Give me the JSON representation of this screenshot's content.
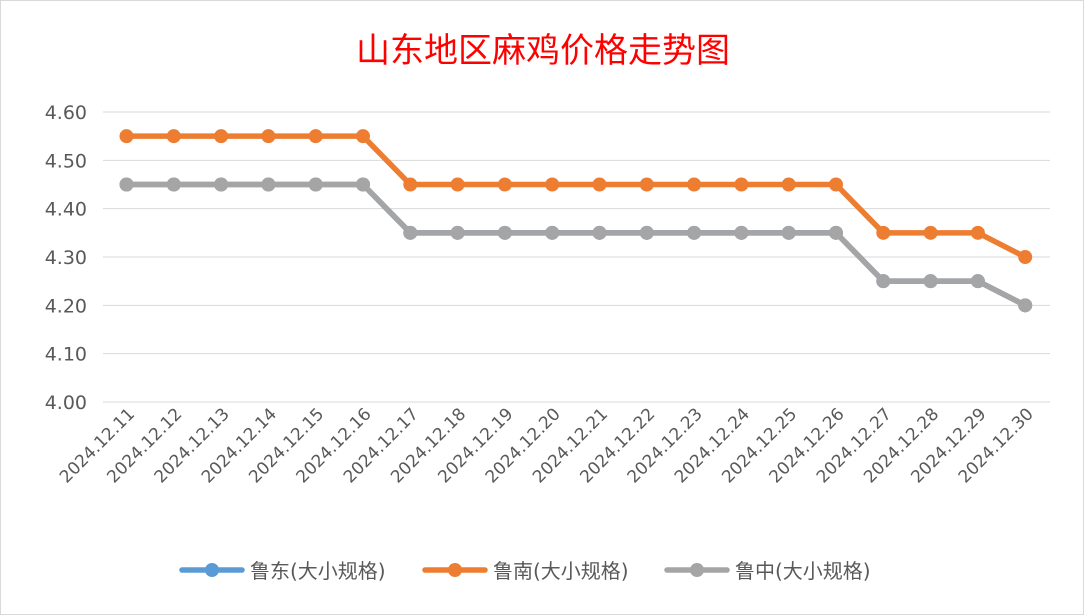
{
  "chart_data": {
    "type": "line",
    "title": "山东地区麻鸡价格走势图",
    "xlabel": "",
    "ylabel": "",
    "categories": [
      "2024.12.11",
      "2024.12.12",
      "2024.12.13",
      "2024.12.14",
      "2024.12.15",
      "2024.12.16",
      "2024.12.17",
      "2024.12.18",
      "2024.12.19",
      "2024.12.20",
      "2024.12.21",
      "2024.12.22",
      "2024.12.23",
      "2024.12.24",
      "2024.12.25",
      "2024.12.26",
      "2024.12.27",
      "2024.12.28",
      "2024.12.29",
      "2024.12.30"
    ],
    "yticks": [
      "4.00",
      "4.10",
      "4.20",
      "4.30",
      "4.40",
      "4.50",
      "4.60"
    ],
    "ylim": [
      4.0,
      4.6
    ],
    "grid": true,
    "legend_position": "bottom",
    "series": [
      {
        "name": "鲁东(大小规格)",
        "color": "#5b9bd5",
        "values": [
          4.45,
          4.45,
          4.45,
          4.45,
          4.45,
          4.45,
          4.35,
          4.35,
          4.35,
          4.35,
          4.35,
          4.35,
          4.35,
          4.35,
          4.35,
          4.35,
          4.25,
          4.25,
          4.25,
          4.2
        ]
      },
      {
        "name": "鲁南(大小规格)",
        "color": "#ed7d31",
        "values": [
          4.55,
          4.55,
          4.55,
          4.55,
          4.55,
          4.55,
          4.45,
          4.45,
          4.45,
          4.45,
          4.45,
          4.45,
          4.45,
          4.45,
          4.45,
          4.45,
          4.35,
          4.35,
          4.35,
          4.3
        ]
      },
      {
        "name": "鲁中(大小规格)",
        "color": "#a5a5a5",
        "values": [
          4.45,
          4.45,
          4.45,
          4.45,
          4.45,
          4.45,
          4.35,
          4.35,
          4.35,
          4.35,
          4.35,
          4.35,
          4.35,
          4.35,
          4.35,
          4.35,
          4.25,
          4.25,
          4.25,
          4.2
        ]
      }
    ]
  }
}
